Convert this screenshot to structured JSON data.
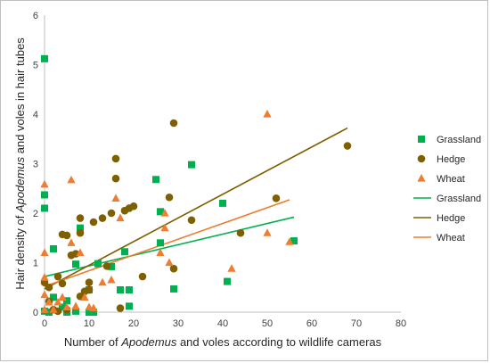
{
  "chart_data": {
    "type": "scatter",
    "title": "",
    "xlabel": {
      "prefix": "Number of ",
      "italic": "Apodemus",
      "suffix": " and voles according to wildlife cameras"
    },
    "ylabel": {
      "prefix": "Hair density of ",
      "italic": "Apodemus",
      "suffix": " and voles in hair tubes"
    },
    "xlim": [
      0,
      80
    ],
    "ylim": [
      0,
      6
    ],
    "xticks": [
      "0",
      "10",
      "20",
      "30",
      "40",
      "50",
      "60",
      "70",
      "80"
    ],
    "yticks": [
      "0",
      "1",
      "2",
      "3",
      "4",
      "5",
      "6"
    ],
    "grid": false,
    "legend_position": "right",
    "colors": {
      "Grassland": "#00b050",
      "Hedge": "#7f6000",
      "Wheat": "#ed7d31"
    },
    "series": [
      {
        "name": "Grassland",
        "marker": "square",
        "points": [
          [
            0,
            5.12
          ],
          [
            0,
            2.37
          ],
          [
            0,
            2.1
          ],
          [
            0,
            0.02
          ],
          [
            1,
            0
          ],
          [
            2,
            1.28
          ],
          [
            2,
            0.3
          ],
          [
            4,
            0.1
          ],
          [
            5,
            0.23
          ],
          [
            5,
            0
          ],
          [
            7,
            0.97
          ],
          [
            7,
            0.02
          ],
          [
            8,
            1.7
          ],
          [
            10,
            0.45
          ],
          [
            10,
            0
          ],
          [
            11,
            0
          ],
          [
            12,
            0.98
          ],
          [
            15,
            0.92
          ],
          [
            17,
            0.45
          ],
          [
            18,
            1.22
          ],
          [
            19,
            0.45
          ],
          [
            19,
            0.12
          ],
          [
            25,
            2.68
          ],
          [
            26,
            2.03
          ],
          [
            26,
            1.4
          ],
          [
            29,
            0.47
          ],
          [
            33,
            2.98
          ],
          [
            40,
            2.2
          ],
          [
            41,
            0.62
          ],
          [
            56,
            1.44
          ]
        ]
      },
      {
        "name": "Hedge",
        "marker": "circle",
        "points": [
          [
            0,
            0.6
          ],
          [
            1,
            0.5
          ],
          [
            1,
            0.22
          ],
          [
            2,
            0.05
          ],
          [
            3,
            0.72
          ],
          [
            3,
            0.02
          ],
          [
            4,
            1.57
          ],
          [
            4,
            0.58
          ],
          [
            5,
            1.55
          ],
          [
            5,
            0.05
          ],
          [
            6,
            1.15
          ],
          [
            7,
            1.18
          ],
          [
            8,
            1.9
          ],
          [
            8,
            1.6
          ],
          [
            8,
            0.32
          ],
          [
            9,
            0.42
          ],
          [
            10,
            0.6
          ],
          [
            10,
            0.45
          ],
          [
            11,
            1.82
          ],
          [
            13,
            1.9
          ],
          [
            14,
            0.93
          ],
          [
            15,
            2.0
          ],
          [
            16,
            3.1
          ],
          [
            16,
            2.7
          ],
          [
            17,
            0.08
          ],
          [
            18,
            2.05
          ],
          [
            19,
            2.1
          ],
          [
            20,
            2.14
          ],
          [
            22,
            0.72
          ],
          [
            28,
            2.32
          ],
          [
            29,
            3.82
          ],
          [
            29,
            0.88
          ],
          [
            33,
            1.86
          ],
          [
            44,
            1.6
          ],
          [
            52,
            2.3
          ],
          [
            68,
            3.36
          ]
        ]
      },
      {
        "name": "Wheat",
        "marker": "triangle",
        "points": [
          [
            0,
            2.58
          ],
          [
            0,
            1.2
          ],
          [
            0,
            0.7
          ],
          [
            0,
            0.35
          ],
          [
            0,
            0.05
          ],
          [
            1,
            0.2
          ],
          [
            2,
            0.05
          ],
          [
            3,
            0.2
          ],
          [
            4,
            0.3
          ],
          [
            5,
            0.1
          ],
          [
            6,
            2.67
          ],
          [
            6,
            1.4
          ],
          [
            7,
            0.12
          ],
          [
            8,
            1.2
          ],
          [
            9,
            0.3
          ],
          [
            10,
            0.1
          ],
          [
            11,
            0.08
          ],
          [
            13,
            0.6
          ],
          [
            15,
            0.65
          ],
          [
            16,
            2.3
          ],
          [
            17,
            1.9
          ],
          [
            26,
            1.2
          ],
          [
            27,
            1.7
          ],
          [
            27,
            2.0
          ],
          [
            28,
            1.0
          ],
          [
            42,
            0.88
          ],
          [
            50,
            4.0
          ],
          [
            50,
            1.6
          ],
          [
            55,
            1.42
          ]
        ]
      }
    ],
    "trendlines": [
      {
        "name": "Grassland",
        "from": [
          0,
          0.72
        ],
        "to": [
          56,
          1.92
        ]
      },
      {
        "name": "Hedge",
        "from": [
          0,
          0.47
        ],
        "to": [
          68,
          3.72
        ]
      },
      {
        "name": "Wheat",
        "from": [
          0,
          0.52
        ],
        "to": [
          55,
          2.27
        ]
      }
    ]
  }
}
